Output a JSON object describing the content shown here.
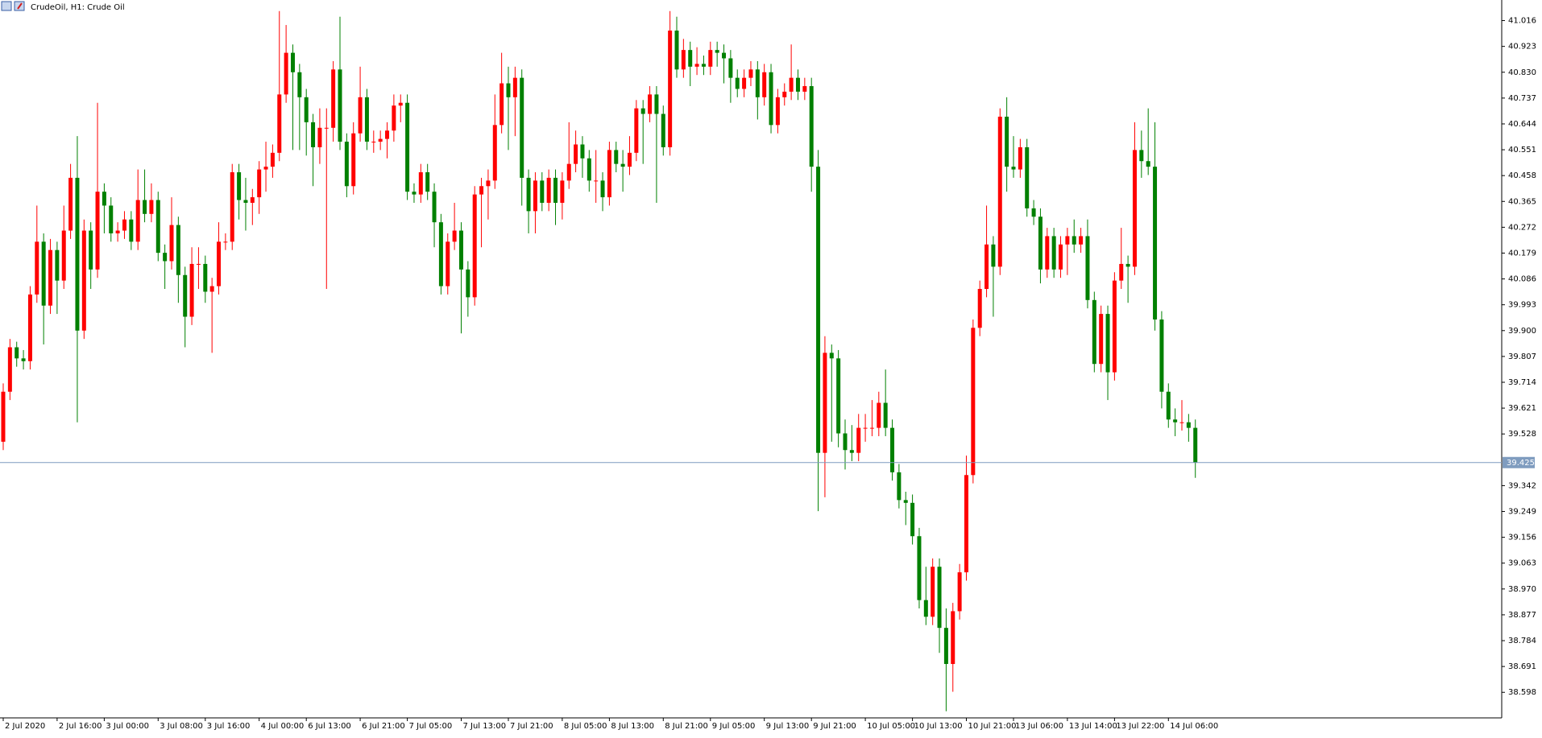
{
  "chart_data": {
    "type": "candlestick",
    "title": "CrudeOil, H1:  Crude Oil",
    "up_color": "#ff0000",
    "down_color": "#008000",
    "price_line_color": "#7f9cbf",
    "current_price": 39.425,
    "ylim": [
      38.506,
      41.09
    ],
    "yticks": [
      41.016,
      40.923,
      {
        "value": 40.83,
        "label": "40.830"
      },
      40.737,
      40.644,
      40.551,
      40.458,
      40.365,
      40.272,
      40.179,
      40.086,
      39.993,
      {
        "value": 39.9,
        "label": "39.900"
      },
      39.807,
      39.714,
      39.621,
      39.528,
      39.342,
      39.249,
      39.156,
      39.063,
      {
        "value": 38.97,
        "label": "38.970"
      },
      38.877,
      38.784,
      38.691,
      38.598
    ],
    "categories": [
      "2 Jul 2020",
      null,
      null,
      null,
      null,
      null,
      null,
      null,
      "2 Jul 16:00",
      null,
      null,
      null,
      null,
      null,
      null,
      "3 Jul 00:00",
      null,
      null,
      null,
      null,
      null,
      null,
      null,
      "3 Jul 08:00",
      null,
      null,
      null,
      null,
      null,
      null,
      "3 Jul 16:00",
      null,
      null,
      null,
      null,
      null,
      null,
      null,
      "4 Jul 00:00",
      null,
      null,
      null,
      null,
      null,
      null,
      "6 Jul 13:00",
      null,
      null,
      null,
      null,
      null,
      null,
      null,
      "6 Jul 21:00",
      null,
      null,
      null,
      null,
      null,
      null,
      "7 Jul 05:00",
      null,
      null,
      null,
      null,
      null,
      null,
      null,
      "7 Jul 13:00",
      null,
      null,
      null,
      null,
      null,
      null,
      "7 Jul 21:00",
      null,
      null,
      null,
      null,
      null,
      null,
      null,
      "8 Jul 05:00",
      null,
      null,
      null,
      null,
      null,
      null,
      "8 Jul 13:00",
      null,
      null,
      null,
      null,
      null,
      null,
      null,
      "8 Jul 21:00",
      null,
      null,
      null,
      null,
      null,
      null,
      "9 Jul 05:00",
      null,
      null,
      null,
      null,
      null,
      null,
      null,
      "9 Jul 13:00",
      null,
      null,
      null,
      null,
      null,
      null,
      "9 Jul 21:00",
      null,
      null,
      null,
      null,
      null,
      null,
      null,
      "10 Jul 05:00",
      null,
      null,
      null,
      null,
      null,
      null,
      "10 Jul 13:00",
      null,
      null,
      null,
      null,
      null,
      null,
      null,
      "10 Jul 21:00",
      null,
      null,
      null,
      null,
      null,
      null,
      "13 Jul 06:00",
      null,
      null,
      null,
      null,
      null,
      null,
      null,
      "13 Jul 14:00",
      null,
      null,
      null,
      null,
      null,
      null,
      "13 Jul 22:00",
      null,
      null,
      null,
      null,
      null,
      null,
      null,
      "14 Jul 06:00",
      null,
      null,
      null,
      null
    ],
    "candles": [
      [
        39.5,
        39.71,
        39.47,
        39.68
      ],
      [
        39.68,
        39.87,
        39.65,
        39.84
      ],
      [
        39.84,
        39.86,
        39.77,
        39.8
      ],
      [
        39.8,
        39.83,
        39.76,
        39.79
      ],
      [
        39.79,
        40.06,
        39.76,
        40.03
      ],
      [
        40.03,
        40.35,
        40.0,
        40.22
      ],
      [
        40.22,
        40.25,
        39.85,
        39.99
      ],
      [
        39.99,
        40.23,
        39.96,
        40.19
      ],
      [
        40.19,
        40.22,
        39.96,
        40.08
      ],
      [
        40.08,
        40.35,
        40.05,
        40.26
      ],
      [
        40.26,
        40.5,
        40.23,
        40.45
      ],
      [
        40.45,
        40.6,
        39.57,
        39.9
      ],
      [
        39.9,
        40.3,
        39.87,
        40.26
      ],
      [
        40.26,
        40.29,
        40.05,
        40.12
      ],
      [
        40.12,
        40.72,
        40.09,
        40.4
      ],
      [
        40.4,
        40.43,
        40.25,
        40.35
      ],
      [
        40.35,
        40.38,
        40.22,
        40.25
      ],
      [
        40.25,
        40.29,
        40.22,
        40.26
      ],
      [
        40.26,
        40.33,
        40.23,
        40.3
      ],
      [
        40.3,
        40.33,
        40.19,
        40.22
      ],
      [
        40.22,
        40.48,
        40.19,
        40.37
      ],
      [
        40.37,
        40.48,
        40.29,
        40.32
      ],
      [
        40.32,
        40.43,
        40.29,
        40.37
      ],
      [
        40.37,
        40.4,
        40.15,
        40.18
      ],
      [
        40.18,
        40.21,
        40.05,
        40.15
      ],
      [
        40.15,
        40.38,
        40.12,
        40.28
      ],
      [
        40.28,
        40.31,
        40.0,
        40.1
      ],
      [
        40.1,
        40.13,
        39.84,
        39.95
      ],
      [
        39.95,
        40.2,
        39.92,
        40.14
      ],
      [
        40.14,
        40.2,
        40.05,
        40.14
      ],
      [
        40.14,
        40.17,
        40.0,
        40.04
      ],
      [
        40.04,
        40.09,
        39.82,
        40.06
      ],
      [
        40.06,
        40.29,
        40.03,
        40.22
      ],
      [
        40.22,
        40.25,
        40.19,
        40.22
      ],
      [
        40.22,
        40.5,
        40.19,
        40.47
      ],
      [
        40.47,
        40.5,
        40.3,
        40.37
      ],
      [
        40.37,
        40.45,
        40.26,
        40.36
      ],
      [
        40.36,
        40.41,
        40.28,
        40.38
      ],
      [
        40.38,
        40.51,
        40.32,
        40.48
      ],
      [
        40.48,
        40.58,
        40.4,
        40.49
      ],
      [
        40.49,
        40.57,
        40.45,
        40.54
      ],
      [
        40.54,
        41.05,
        40.51,
        40.75
      ],
      [
        40.75,
        41.0,
        40.72,
        40.9
      ],
      [
        40.9,
        40.93,
        40.55,
        40.83
      ],
      [
        40.83,
        40.86,
        40.55,
        40.74
      ],
      [
        40.74,
        40.77,
        40.53,
        40.65
      ],
      [
        40.65,
        40.68,
        40.42,
        40.56
      ],
      [
        40.56,
        40.7,
        40.5,
        40.63
      ],
      [
        40.63,
        40.7,
        40.05,
        40.63
      ],
      [
        40.63,
        40.87,
        40.58,
        40.84
      ],
      [
        40.84,
        41.03,
        40.55,
        40.58
      ],
      [
        40.58,
        40.61,
        40.38,
        40.42
      ],
      [
        40.42,
        40.65,
        40.39,
        40.61
      ],
      [
        40.61,
        40.85,
        40.58,
        40.74
      ],
      [
        40.74,
        40.77,
        40.55,
        40.58
      ],
      [
        40.58,
        40.62,
        40.54,
        40.58
      ],
      [
        40.58,
        40.62,
        40.55,
        40.59
      ],
      [
        40.59,
        40.65,
        40.52,
        40.62
      ],
      [
        40.62,
        40.75,
        40.58,
        40.71
      ],
      [
        40.71,
        40.75,
        40.65,
        40.72
      ],
      [
        40.72,
        40.75,
        40.37,
        40.4
      ],
      [
        40.4,
        40.43,
        40.36,
        40.39
      ],
      [
        40.39,
        40.5,
        40.36,
        40.47
      ],
      [
        40.47,
        40.5,
        40.37,
        40.4
      ],
      [
        40.4,
        40.43,
        40.2,
        40.29
      ],
      [
        40.29,
        40.32,
        40.03,
        40.06
      ],
      [
        40.06,
        40.25,
        40.03,
        40.22
      ],
      [
        40.22,
        40.36,
        40.19,
        40.26
      ],
      [
        40.26,
        40.29,
        39.89,
        40.12
      ],
      [
        40.12,
        40.15,
        39.95,
        40.02
      ],
      [
        40.02,
        40.42,
        39.99,
        40.39
      ],
      [
        40.39,
        40.45,
        40.2,
        40.42
      ],
      [
        40.42,
        40.48,
        40.3,
        40.44
      ],
      [
        40.44,
        40.75,
        40.41,
        40.64
      ],
      [
        40.64,
        40.9,
        40.61,
        40.79
      ],
      [
        40.79,
        40.85,
        40.55,
        40.74
      ],
      [
        40.74,
        40.85,
        40.6,
        40.81
      ],
      [
        40.81,
        40.84,
        40.35,
        40.45
      ],
      [
        40.45,
        40.48,
        40.25,
        40.33
      ],
      [
        40.33,
        40.47,
        40.25,
        40.44
      ],
      [
        40.44,
        40.47,
        40.33,
        40.36
      ],
      [
        40.36,
        40.48,
        40.33,
        40.45
      ],
      [
        40.45,
        40.48,
        40.28,
        40.36
      ],
      [
        40.36,
        40.47,
        40.3,
        40.44
      ],
      [
        40.44,
        40.65,
        40.41,
        40.5
      ],
      [
        40.5,
        40.62,
        40.47,
        40.57
      ],
      [
        40.57,
        40.6,
        40.45,
        40.52
      ],
      [
        40.52,
        40.55,
        40.4,
        40.44
      ],
      [
        40.44,
        40.55,
        40.36,
        40.44
      ],
      [
        40.44,
        40.47,
        40.33,
        40.38
      ],
      [
        40.38,
        40.58,
        40.35,
        40.55
      ],
      [
        40.55,
        40.58,
        40.47,
        40.5
      ],
      [
        40.5,
        40.55,
        40.4,
        40.49
      ],
      [
        40.49,
        40.6,
        40.46,
        40.54
      ],
      [
        40.54,
        40.73,
        40.51,
        40.7
      ],
      [
        40.7,
        40.73,
        40.5,
        40.68
      ],
      [
        40.68,
        40.78,
        40.65,
        40.75
      ],
      [
        40.75,
        40.78,
        40.36,
        40.68
      ],
      [
        40.68,
        40.71,
        40.53,
        40.56
      ],
      [
        40.56,
        41.05,
        40.53,
        40.98
      ],
      [
        40.98,
        41.03,
        40.81,
        40.84
      ],
      [
        40.84,
        40.95,
        40.81,
        40.91
      ],
      [
        40.91,
        40.94,
        40.78,
        40.85
      ],
      [
        40.85,
        40.92,
        40.82,
        40.86
      ],
      [
        40.86,
        40.89,
        40.82,
        40.85
      ],
      [
        40.85,
        40.94,
        40.82,
        40.91
      ],
      [
        40.91,
        40.94,
        40.85,
        40.9
      ],
      [
        40.9,
        40.93,
        40.79,
        40.88
      ],
      [
        40.88,
        40.91,
        40.72,
        40.81
      ],
      [
        40.81,
        40.84,
        40.74,
        40.77
      ],
      [
        40.77,
        40.84,
        40.74,
        40.81
      ],
      [
        40.81,
        40.87,
        40.78,
        40.84
      ],
      [
        40.84,
        40.87,
        40.66,
        40.74
      ],
      [
        40.74,
        40.86,
        40.71,
        40.83
      ],
      [
        40.83,
        40.86,
        40.61,
        40.64
      ],
      [
        40.64,
        40.77,
        40.61,
        40.74
      ],
      [
        40.74,
        40.79,
        40.71,
        40.76
      ],
      [
        40.76,
        40.93,
        40.73,
        40.81
      ],
      [
        40.81,
        40.84,
        40.73,
        40.76
      ],
      [
        40.76,
        40.81,
        40.73,
        40.78
      ],
      [
        40.78,
        40.81,
        40.4,
        40.49
      ],
      [
        40.49,
        40.55,
        39.25,
        39.46
      ],
      [
        39.46,
        39.88,
        39.3,
        39.82
      ],
      [
        39.82,
        39.85,
        39.5,
        39.8
      ],
      [
        39.8,
        39.83,
        39.48,
        39.53
      ],
      [
        39.53,
        39.58,
        39.4,
        39.47
      ],
      [
        39.47,
        39.56,
        39.43,
        39.46
      ],
      [
        39.46,
        39.6,
        39.43,
        39.55
      ],
      [
        39.55,
        39.6,
        39.5,
        39.55
      ],
      [
        39.55,
        39.65,
        39.52,
        39.55
      ],
      [
        39.55,
        39.68,
        39.52,
        39.64
      ],
      [
        39.64,
        39.76,
        39.52,
        39.55
      ],
      [
        39.55,
        39.58,
        39.36,
        39.39
      ],
      [
        39.39,
        39.42,
        39.26,
        39.29
      ],
      [
        39.29,
        39.32,
        39.2,
        39.28
      ],
      [
        39.28,
        39.31,
        39.13,
        39.16
      ],
      [
        39.16,
        39.19,
        38.9,
        38.93
      ],
      [
        38.93,
        39.05,
        38.84,
        38.87
      ],
      [
        38.87,
        39.08,
        38.84,
        39.05
      ],
      [
        39.05,
        39.08,
        38.74,
        38.83
      ],
      [
        38.83,
        38.9,
        38.53,
        38.7
      ],
      [
        38.7,
        38.92,
        38.6,
        38.89
      ],
      [
        38.89,
        39.06,
        38.86,
        39.03
      ],
      [
        39.03,
        39.45,
        39.0,
        39.38
      ],
      [
        39.38,
        39.94,
        39.35,
        39.91
      ],
      [
        39.91,
        40.08,
        39.88,
        40.05
      ],
      [
        40.05,
        40.35,
        40.02,
        40.21
      ],
      [
        40.21,
        40.24,
        39.95,
        40.13
      ],
      [
        40.13,
        40.7,
        40.1,
        40.67
      ],
      [
        40.67,
        40.74,
        40.4,
        40.49
      ],
      [
        40.49,
        40.6,
        40.45,
        40.48
      ],
      [
        40.48,
        40.59,
        40.45,
        40.56
      ],
      [
        40.56,
        40.59,
        40.31,
        40.34
      ],
      [
        40.34,
        40.37,
        40.28,
        40.31
      ],
      [
        40.31,
        40.34,
        40.07,
        40.12
      ],
      [
        40.12,
        40.27,
        40.09,
        40.24
      ],
      [
        40.24,
        40.27,
        40.09,
        40.12
      ],
      [
        40.12,
        40.24,
        40.09,
        40.21
      ],
      [
        40.21,
        40.27,
        40.1,
        40.24
      ],
      [
        40.24,
        40.3,
        40.18,
        40.21
      ],
      [
        40.21,
        40.27,
        40.18,
        40.24
      ],
      [
        40.24,
        40.3,
        39.98,
        40.01
      ],
      [
        40.01,
        40.04,
        39.75,
        39.78
      ],
      [
        39.78,
        39.99,
        39.75,
        39.96
      ],
      [
        39.96,
        39.99,
        39.65,
        39.75
      ],
      [
        39.75,
        40.11,
        39.72,
        40.08
      ],
      [
        40.08,
        40.27,
        40.05,
        40.14
      ],
      [
        40.14,
        40.17,
        40.0,
        40.13
      ],
      [
        40.13,
        40.65,
        40.1,
        40.55
      ],
      [
        40.55,
        40.62,
        40.45,
        40.51
      ],
      [
        40.51,
        40.7,
        40.46,
        40.49
      ],
      [
        40.49,
        40.65,
        39.9,
        39.94
      ],
      [
        39.94,
        39.97,
        39.62,
        39.68
      ],
      [
        39.68,
        39.71,
        39.55,
        39.58
      ],
      [
        39.58,
        39.62,
        39.52,
        39.57
      ],
      [
        39.57,
        39.65,
        39.54,
        39.57
      ],
      [
        39.57,
        39.6,
        39.5,
        39.55
      ],
      [
        39.55,
        39.58,
        39.37,
        39.425
      ]
    ]
  }
}
